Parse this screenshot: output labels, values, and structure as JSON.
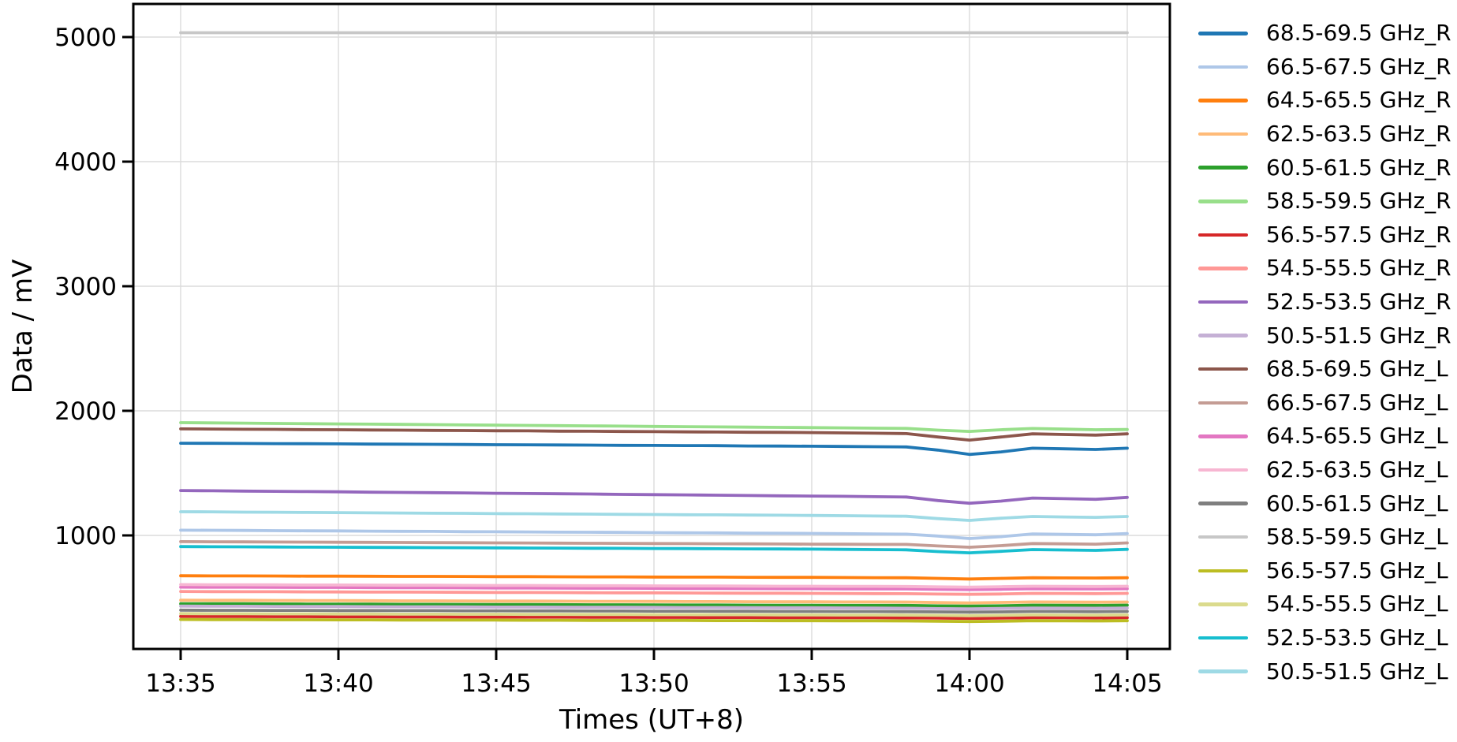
{
  "chart_data": {
    "type": "line",
    "title": "",
    "xlabel": "Times (UT+8)",
    "ylabel": "Data / mV",
    "x_ticks": [
      "13:35",
      "13:40",
      "13:45",
      "13:50",
      "13:55",
      "14:00",
      "14:05"
    ],
    "y_ticks": [
      1000,
      2000,
      3000,
      4000,
      5000
    ],
    "ylim": [
      87,
      5266
    ],
    "x_range": [
      "13:35",
      "14:05"
    ],
    "x_step_minutes": 1,
    "x_margin_minutes": 1.5,
    "grid": true,
    "legend_position": "right",
    "series": [
      {
        "name": "68.5-69.5 GHz_R",
        "color": "#1f77b4",
        "values": [
          1740,
          1739,
          1738,
          1737,
          1736,
          1735,
          1733,
          1732,
          1731,
          1730,
          1728,
          1727,
          1726,
          1725,
          1723,
          1722,
          1721,
          1720,
          1718,
          1717,
          1716,
          1714,
          1712,
          1710,
          1685,
          1650,
          1670,
          1700,
          1695,
          1690,
          1700
        ]
      },
      {
        "name": "66.5-67.5 GHz_R",
        "color": "#aec7e8",
        "values": [
          1042,
          1041,
          1040,
          1038,
          1037,
          1036,
          1034,
          1033,
          1032,
          1030,
          1029,
          1028,
          1026,
          1025,
          1024,
          1022,
          1021,
          1020,
          1018,
          1017,
          1016,
          1014,
          1012,
          1010,
          995,
          975,
          990,
          1012,
          1008,
          1005,
          1015
        ]
      },
      {
        "name": "64.5-65.5 GHz_R",
        "color": "#ff7f0e",
        "values": [
          676,
          675,
          675,
          674,
          673,
          673,
          672,
          671,
          671,
          670,
          669,
          669,
          668,
          667,
          667,
          666,
          665,
          665,
          664,
          663,
          663,
          662,
          661,
          660,
          655,
          650,
          655,
          660,
          659,
          658,
          660
        ]
      },
      {
        "name": "62.5-63.5 GHz_R",
        "color": "#ffbb78",
        "values": [
          480,
          479,
          479,
          478,
          477,
          477,
          476,
          475,
          475,
          474,
          473,
          473,
          472,
          471,
          471,
          470,
          469,
          469,
          468,
          467,
          467,
          466,
          466,
          465,
          461,
          458,
          462,
          466,
          465,
          464,
          465
        ]
      },
      {
        "name": "60.5-61.5 GHz_R",
        "color": "#2ca02c",
        "values": [
          452,
          451,
          451,
          450,
          449,
          449,
          448,
          447,
          447,
          446,
          445,
          445,
          444,
          443,
          443,
          442,
          441,
          441,
          440,
          439,
          439,
          438,
          438,
          438,
          434,
          432,
          435,
          440,
          439,
          438,
          440
        ]
      },
      {
        "name": "58.5-59.5 GHz_R",
        "color": "#98df8a",
        "values": [
          1905,
          1903,
          1901,
          1899,
          1897,
          1895,
          1893,
          1891,
          1889,
          1887,
          1885,
          1883,
          1881,
          1879,
          1877,
          1875,
          1873,
          1871,
          1869,
          1867,
          1865,
          1863,
          1861,
          1859,
          1845,
          1835,
          1848,
          1858,
          1853,
          1848,
          1850
        ]
      },
      {
        "name": "56.5-57.5 GHz_R",
        "color": "#d62728",
        "values": [
          350,
          349,
          349,
          348,
          348,
          347,
          347,
          346,
          346,
          345,
          345,
          344,
          344,
          343,
          343,
          342,
          342,
          341,
          341,
          340,
          340,
          339,
          339,
          338,
          336,
          334,
          336,
          340,
          339,
          338,
          340
        ]
      },
      {
        "name": "54.5-55.5 GHz_R",
        "color": "#ff9896",
        "values": [
          550,
          549,
          548,
          548,
          547,
          546,
          545,
          545,
          544,
          543,
          542,
          542,
          541,
          540,
          539,
          539,
          538,
          537,
          536,
          536,
          535,
          534,
          533,
          532,
          529,
          527,
          530,
          535,
          534,
          533,
          535
        ]
      },
      {
        "name": "52.5-53.5 GHz_R",
        "color": "#9467bd",
        "values": [
          1360,
          1358,
          1356,
          1354,
          1352,
          1350,
          1347,
          1345,
          1343,
          1341,
          1338,
          1336,
          1334,
          1332,
          1329,
          1327,
          1325,
          1323,
          1320,
          1318,
          1316,
          1314,
          1311,
          1308,
          1280,
          1258,
          1275,
          1300,
          1295,
          1290,
          1305
        ]
      },
      {
        "name": "50.5-51.5 GHz_R",
        "color": "#c5b0d5",
        "values": [
          432,
          431,
          431,
          430,
          429,
          429,
          428,
          427,
          427,
          426,
          425,
          425,
          424,
          423,
          423,
          422,
          421,
          421,
          420,
          419,
          419,
          418,
          417,
          415,
          412,
          410,
          413,
          417,
          416,
          415,
          417
        ]
      },
      {
        "name": "68.5-69.5 GHz_L",
        "color": "#8c564b",
        "values": [
          1855,
          1854,
          1852,
          1851,
          1849,
          1848,
          1846,
          1845,
          1843,
          1842,
          1840,
          1839,
          1837,
          1836,
          1834,
          1833,
          1831,
          1830,
          1828,
          1827,
          1825,
          1823,
          1820,
          1817,
          1790,
          1765,
          1790,
          1815,
          1810,
          1805,
          1815
        ]
      },
      {
        "name": "66.5-67.5 GHz_L",
        "color": "#c49c94",
        "values": [
          950,
          949,
          948,
          947,
          946,
          945,
          944,
          943,
          942,
          941,
          940,
          939,
          938,
          937,
          936,
          935,
          934,
          933,
          932,
          931,
          930,
          929,
          928,
          928,
          915,
          905,
          918,
          935,
          932,
          930,
          940
        ]
      },
      {
        "name": "64.5-65.5 GHz_L",
        "color": "#e377c2",
        "values": [
          585,
          584,
          584,
          583,
          582,
          582,
          581,
          580,
          580,
          579,
          578,
          578,
          577,
          576,
          576,
          575,
          574,
          574,
          573,
          572,
          572,
          571,
          571,
          570,
          567,
          565,
          568,
          572,
          571,
          570,
          572
        ]
      },
      {
        "name": "62.5-63.5 GHz_L",
        "color": "#f7b6d2",
        "values": [
          605,
          604,
          604,
          603,
          602,
          602,
          601,
          600,
          600,
          599,
          598,
          598,
          597,
          596,
          596,
          595,
          594,
          594,
          593,
          592,
          592,
          591,
          591,
          590,
          587,
          585,
          588,
          592,
          591,
          590,
          592
        ]
      },
      {
        "name": "60.5-61.5 GHz_L",
        "color": "#7f7f7f",
        "values": [
          400,
          399,
          399,
          398,
          398,
          397,
          397,
          396,
          396,
          395,
          395,
          394,
          394,
          393,
          393,
          392,
          392,
          391,
          391,
          390,
          390,
          389,
          389,
          388,
          386,
          384,
          386,
          390,
          389,
          388,
          390
        ]
      },
      {
        "name": "58.5-59.5 GHz_L",
        "color": "#c7c7c7",
        "values": [
          5035,
          5035,
          5035,
          5035,
          5035,
          5035,
          5035,
          5035,
          5035,
          5035,
          5035,
          5035,
          5035,
          5035,
          5035,
          5035,
          5035,
          5035,
          5035,
          5035,
          5035,
          5035,
          5035,
          5035,
          5035,
          5035,
          5035,
          5035,
          5035,
          5035,
          5035
        ]
      },
      {
        "name": "56.5-57.5 GHz_L",
        "color": "#bcbd22",
        "values": [
          325,
          324,
          324,
          323,
          323,
          322,
          322,
          321,
          321,
          320,
          320,
          319,
          319,
          318,
          318,
          317,
          317,
          316,
          316,
          315,
          315,
          314,
          314,
          313,
          311,
          309,
          311,
          315,
          314,
          313,
          315
        ]
      },
      {
        "name": "54.5-55.5 GHz_L",
        "color": "#dbdb8d",
        "values": [
          372,
          371,
          371,
          370,
          370,
          369,
          369,
          368,
          368,
          367,
          367,
          366,
          366,
          365,
          365,
          364,
          364,
          363,
          363,
          362,
          362,
          361,
          361,
          360,
          358,
          356,
          358,
          362,
          361,
          360,
          362
        ]
      },
      {
        "name": "52.5-53.5 GHz_L",
        "color": "#17becf",
        "values": [
          910,
          909,
          908,
          907,
          906,
          905,
          904,
          903,
          902,
          901,
          900,
          899,
          898,
          897,
          896,
          895,
          894,
          893,
          892,
          891,
          890,
          888,
          886,
          884,
          870,
          860,
          872,
          886,
          883,
          880,
          888
        ]
      },
      {
        "name": "50.5-51.5 GHz_L",
        "color": "#9edae5",
        "values": [
          1190,
          1189,
          1187,
          1186,
          1184,
          1183,
          1181,
          1180,
          1178,
          1177,
          1175,
          1174,
          1172,
          1171,
          1169,
          1168,
          1166,
          1165,
          1163,
          1162,
          1160,
          1158,
          1156,
          1154,
          1135,
          1120,
          1138,
          1152,
          1148,
          1145,
          1152
        ]
      }
    ],
    "style": {
      "grid_color": "#dcdcdc",
      "spine_color": "#000000",
      "text_color": "#000000",
      "background": "#ffffff"
    }
  }
}
